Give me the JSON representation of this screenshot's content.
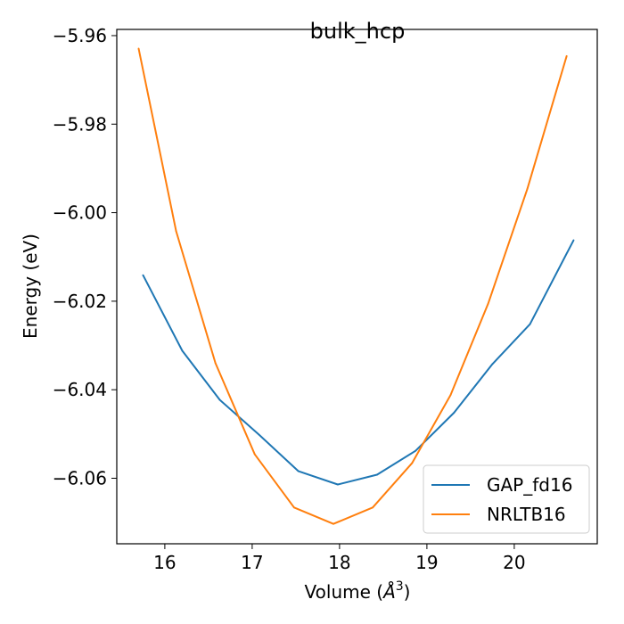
{
  "chart_data": {
    "type": "line",
    "title": "bulk_hcp",
    "xlabel": "Volume (",
    "xlabel_unit": "Å",
    "xlabel_exp": "3",
    "xlabel_close": ")",
    "ylabel": "Energy (eV)",
    "xlim": [
      15.45,
      20.95
    ],
    "ylim": [
      -6.0748,
      -5.9586
    ],
    "xticks": [
      16,
      17,
      18,
      19,
      20
    ],
    "xtick_labels": [
      "16",
      "17",
      "18",
      "19",
      "20"
    ],
    "yticks": [
      -5.96,
      -5.98,
      -6.0,
      -6.02,
      -6.04,
      -6.06
    ],
    "ytick_labels": [
      "−5.96",
      "−5.98",
      "−6.00",
      "−6.02",
      "−6.04",
      "−6.06"
    ],
    "legend_position": "bottom-right",
    "series": [
      {
        "name": "GAP_fd16",
        "color": "#1f77b4",
        "x": [
          15.75,
          16.2,
          16.63,
          17.08,
          17.53,
          17.98,
          18.43,
          18.87,
          19.31,
          19.75,
          20.18,
          20.68
        ],
        "y": [
          -6.0141,
          -6.0312,
          -6.0423,
          -6.0502,
          -6.0584,
          -6.0614,
          -6.0592,
          -6.0538,
          -6.0452,
          -6.0342,
          -6.0252,
          -6.0062
        ]
      },
      {
        "name": "NRLTB16",
        "color": "#ff7f0e",
        "x": [
          15.7,
          16.13,
          16.58,
          17.03,
          17.48,
          17.93,
          18.38,
          18.83,
          19.27,
          19.7,
          20.15,
          20.6
        ],
        "y": [
          -5.9629,
          -6.0042,
          -6.034,
          -6.0546,
          -6.0666,
          -6.0703,
          -6.0666,
          -6.0566,
          -6.0412,
          -6.0206,
          -5.9946,
          -5.9646
        ]
      }
    ]
  }
}
